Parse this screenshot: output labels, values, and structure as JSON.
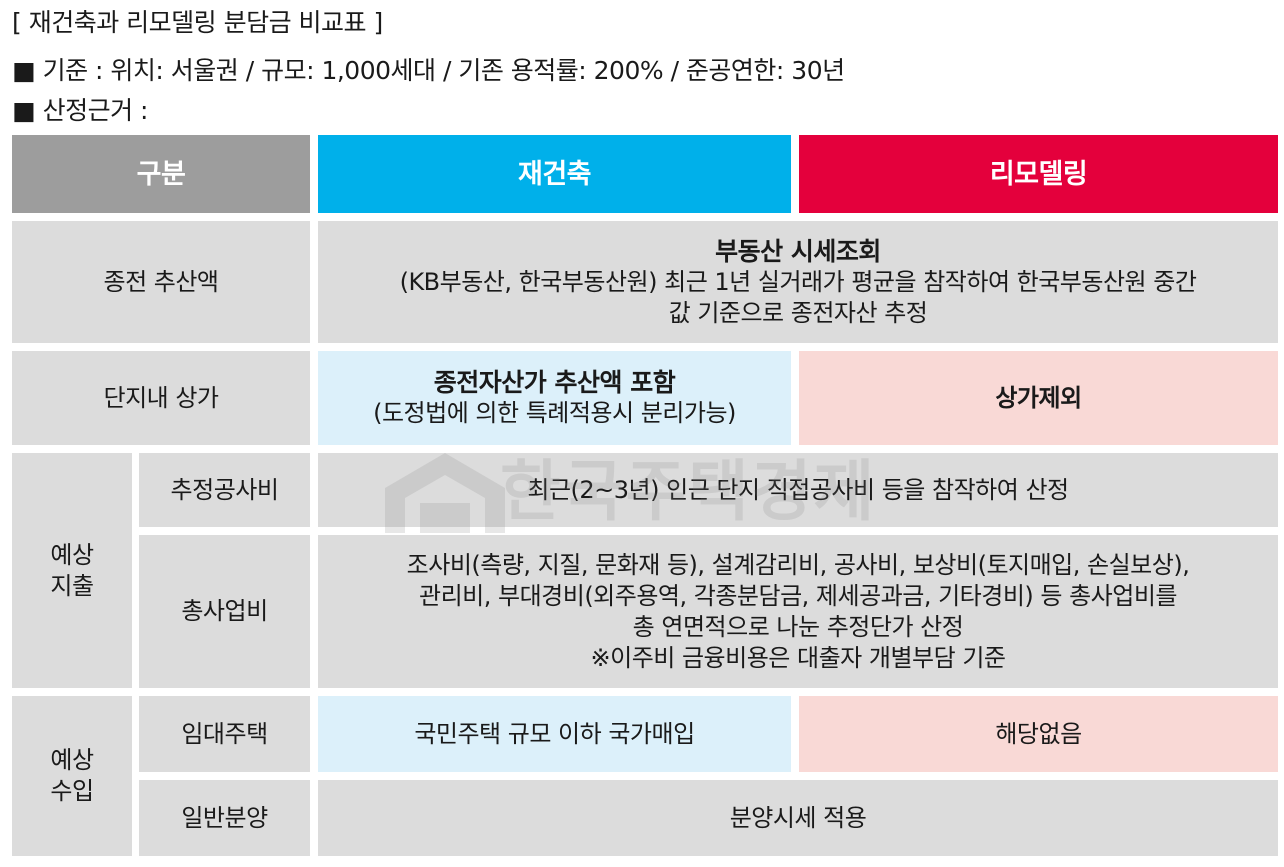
{
  "header": {
    "title": "[ 재건축과 리모델링 분담금 비교표 ]",
    "criteria": "■ 기준 : 위치: 서울권 / 규모: 1,000세대 / 기존 용적률: 200% / 준공연한: 30년",
    "basis": "■ 산정근거 :"
  },
  "table": {
    "col_headers": {
      "category": "구분",
      "rebuild": "재건축",
      "remodel": "리모델링"
    },
    "row_appraisal": {
      "label": "종전 추산액",
      "title": "부동산 시세조회",
      "line1": "(KB부동산, 한국부동산원) 최근 1년 실거래가 평균을 참작하여 한국부동산원 중간",
      "line2": "값 기준으로 종전자산 추정"
    },
    "row_shops": {
      "label": "단지내 상가",
      "rebuild_title": "종전자산가 추산액 포함",
      "rebuild_note": "(도정법에 의한 특례적용시 분리가능)",
      "remodel": "상가제외"
    },
    "group_expense": {
      "label_line1": "예상",
      "label_line2": "지출",
      "construction": {
        "label": "추정공사비",
        "value": "최근(2~3년) 인근 단지 직접공사비 등을 참작하여 산정"
      },
      "total_project": {
        "label": "총사업비",
        "line1": "조사비(측량, 지질, 문화재 등), 설계감리비, 공사비, 보상비(토지매입, 손실보상),",
        "line2": "관리비, 부대경비(외주용역, 각종분담금, 제세공과금, 기타경비) 등 총사업비를",
        "line3": "총 연면적으로 나눈 추정단가 산정",
        "line4": "※이주비 금융비용은 대출자 개별부담 기준"
      }
    },
    "group_income": {
      "label_line1": "예상",
      "label_line2": "수입",
      "rental": {
        "label": "임대주택",
        "rebuild": "국민주택 규모 이하 국가매입",
        "remodel": "해당없음"
      },
      "general_sale": {
        "label": "일반분양",
        "value": "분양시세 적용"
      }
    }
  },
  "watermark": {
    "text": "한국주택경제",
    "icon": "building-icon"
  },
  "colors": {
    "header_grey": "#9d9d9d",
    "rebuild_cyan": "#00b0ea",
    "remodel_red": "#e4003c",
    "cell_grey": "#dcdcdc",
    "rebuild_light": "#dcf0fa",
    "remodel_light": "#f9d9d6"
  }
}
